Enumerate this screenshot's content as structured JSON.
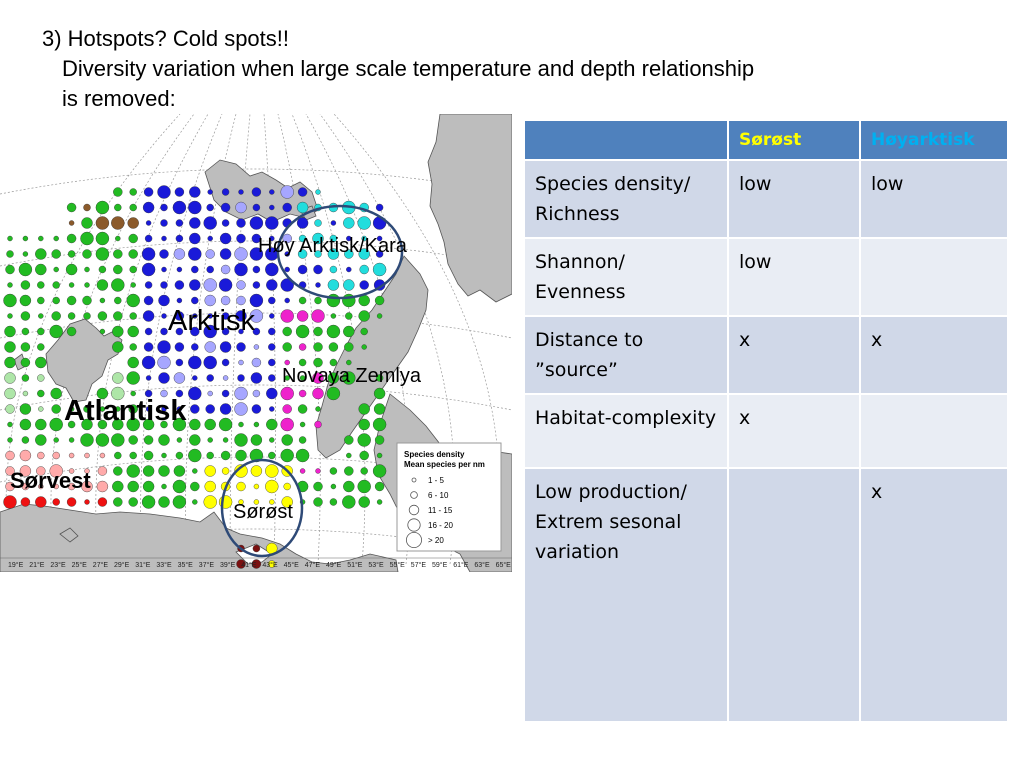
{
  "title": {
    "line1": "3) Hotspots? Cold spots!!",
    "line2": "Diversity variation when large scale temperature and depth relationship",
    "line3": "is removed:"
  },
  "map": {
    "labels": {
      "hoy_arktisk_kara": "Høy Arktisk/Kara",
      "arktisk": "Arktisk",
      "novaya_zemlya": "Novaya Zemlya",
      "atlantisk": "Atlantisk",
      "sorvest": "Sørvest",
      "sorost": "Sørøst"
    },
    "lon_ticks": [
      "19°E",
      "21°E",
      "23°E",
      "25°E",
      "27°E",
      "29°E",
      "31°E",
      "33°E",
      "35°E",
      "37°E",
      "39°E",
      "41°E",
      "43°E",
      "45°E",
      "47°E",
      "49°E",
      "51°E",
      "53°E",
      "55°E",
      "57°E",
      "59°E",
      "61°E",
      "63°E",
      "65°E"
    ],
    "legend": {
      "title1": "Species density",
      "title2": "Mean species per nm",
      "items": [
        "1 - 5",
        "6 - 10",
        "11 - 15",
        "16 - 20",
        "> 20"
      ]
    },
    "colors": {
      "green": "#22bb22",
      "light_green": "#aee6a8",
      "blue": "#1a1ad9",
      "light_blue": "#a6a6ff",
      "cyan": "#22dddd",
      "magenta": "#ee22cc",
      "yellow": "#ffff00",
      "red": "#ee1111",
      "pink": "#ffaaaa",
      "brown": "#8b5a2b",
      "dark_red": "#7a1010",
      "land": "#bdbdbd",
      "circle": "#2e4a77"
    }
  },
  "table": {
    "headers": [
      "",
      "Sørøst",
      "Høyarktisk"
    ],
    "header_colors": [
      "#4f81bd",
      "#ffff00",
      "#00b0f0"
    ],
    "rows": [
      [
        "Species density/ Richness",
        "low",
        "low"
      ],
      [
        "Shannon/ Evenness",
        "low",
        ""
      ],
      [
        "Distance to ”source”",
        "x",
        "x"
      ],
      [
        "Habitat-complexity",
        "x",
        ""
      ],
      [
        "Low production/ Extrem sesonal variation",
        "",
        "x"
      ]
    ]
  }
}
